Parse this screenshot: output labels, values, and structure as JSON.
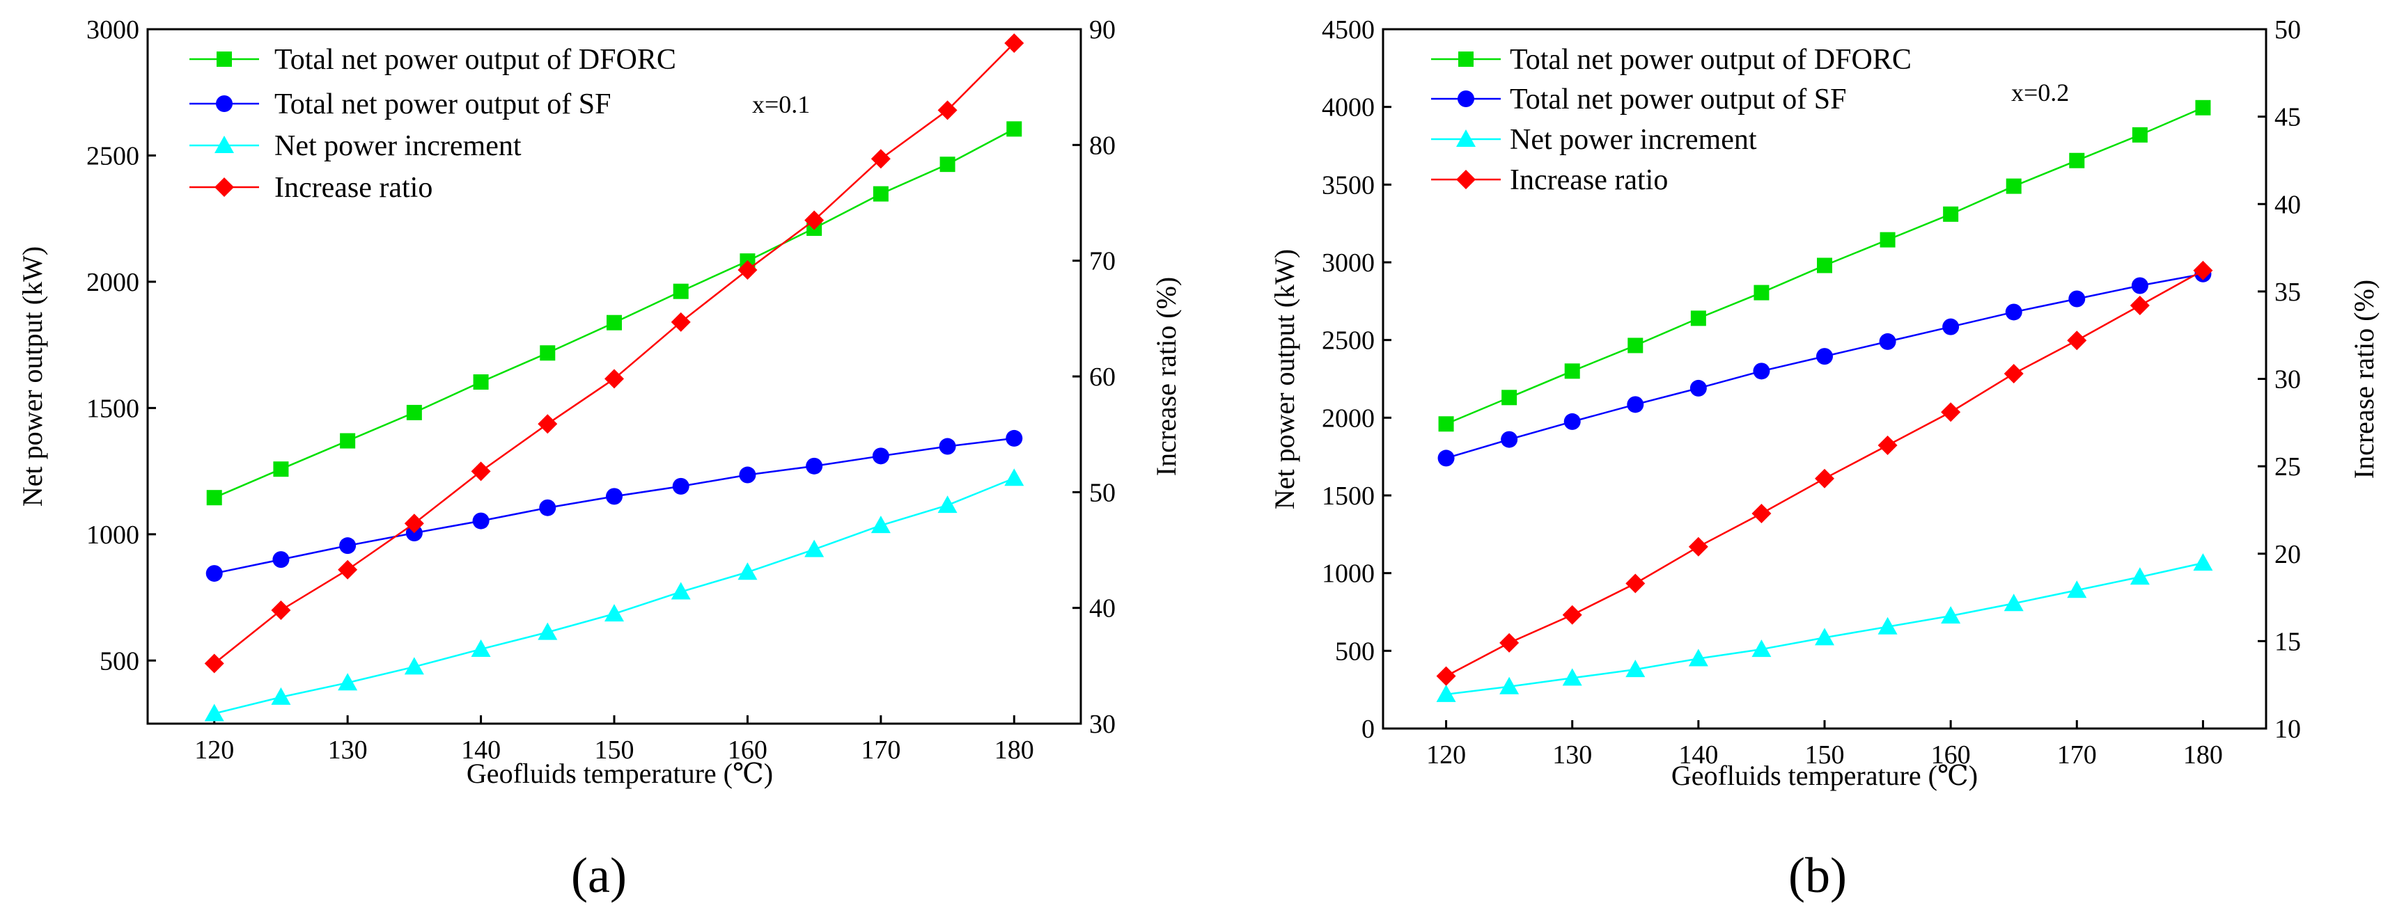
{
  "colors": {
    "dforc": "#00e000",
    "sf": "#0000ff",
    "increment": "#00ffff",
    "ratio": "#ff0000"
  },
  "chart_data": [
    {
      "type": "line",
      "panel_label": "(a)",
      "annotation": "x=0.1",
      "xlabel": "Geofluids temperature (℃)",
      "ylabel": "Net power output (kW)",
      "ylabel_right": "Increase ratio (%)",
      "x": [
        120,
        125,
        130,
        135,
        140,
        145,
        150,
        155,
        160,
        165,
        170,
        175,
        180
      ],
      "xlim": [
        115,
        185
      ],
      "xticks": [
        "120",
        "130",
        "140",
        "150",
        "160",
        "170",
        "180"
      ],
      "ylim": [
        250,
        3000
      ],
      "yticks": [
        "500",
        "1000",
        "1500",
        "2000",
        "2500",
        "3000"
      ],
      "ylim_right": [
        30,
        90
      ],
      "yticks_right": [
        "30",
        "40",
        "50",
        "60",
        "70",
        "80",
        "90"
      ],
      "legend": {
        "placement": "top-left"
      },
      "series": [
        {
          "name": "Total net power output of DFORC",
          "axis": "left",
          "marker": "square",
          "color_key": "dforc",
          "values": [
            1145,
            1258,
            1370,
            1482,
            1603,
            1718,
            1838,
            1962,
            2082,
            2212,
            2348,
            2465,
            2605
          ]
        },
        {
          "name": "Total net power output of SF",
          "axis": "left",
          "marker": "circle",
          "color_key": "sf",
          "values": [
            845,
            900,
            955,
            1005,
            1053,
            1105,
            1150,
            1190,
            1235,
            1270,
            1310,
            1348,
            1380
          ]
        },
        {
          "name": "Net power increment",
          "axis": "left",
          "marker": "triangle",
          "color_key": "increment",
          "values": [
            290,
            355,
            412,
            475,
            545,
            612,
            685,
            772,
            850,
            940,
            1035,
            1115,
            1222
          ]
        },
        {
          "name": "Increase ratio",
          "axis": "right",
          "marker": "diamond",
          "color_key": "ratio",
          "values": [
            35.2,
            39.8,
            43.3,
            47.3,
            51.8,
            55.9,
            59.8,
            64.7,
            69.2,
            73.5,
            78.8,
            83.0,
            88.8
          ]
        }
      ]
    },
    {
      "type": "line",
      "panel_label": "(b)",
      "annotation": "x=0.2",
      "xlabel": "Geofluids temperature (℃)",
      "ylabel": "Net power output (kW)",
      "ylabel_right": "Increase ratio (%)",
      "x": [
        120,
        125,
        130,
        135,
        140,
        145,
        150,
        155,
        160,
        165,
        170,
        175,
        180
      ],
      "xlim": [
        115,
        185
      ],
      "xticks": [
        "120",
        "130",
        "140",
        "150",
        "160",
        "170",
        "180"
      ],
      "ylim": [
        0,
        4500
      ],
      "yticks": [
        "0",
        "500",
        "1000",
        "1500",
        "2000",
        "2500",
        "3000",
        "3500",
        "4000",
        "4500"
      ],
      "ylim_right": [
        10,
        50
      ],
      "yticks_right": [
        "10",
        "15",
        "20",
        "25",
        "30",
        "35",
        "40",
        "45",
        "50"
      ],
      "legend": {
        "placement": "top-left"
      },
      "series": [
        {
          "name": "Total net power output of DFORC",
          "axis": "left",
          "marker": "square",
          "color_key": "dforc",
          "values": [
            1960,
            2130,
            2300,
            2465,
            2640,
            2805,
            2980,
            3145,
            3310,
            3490,
            3655,
            3820,
            3995
          ]
        },
        {
          "name": "Total net power output of SF",
          "axis": "left",
          "marker": "circle",
          "color_key": "sf",
          "values": [
            1740,
            1860,
            1975,
            2085,
            2190,
            2300,
            2395,
            2490,
            2585,
            2680,
            2765,
            2850,
            2925
          ]
        },
        {
          "name": "Net power increment",
          "axis": "left",
          "marker": "triangle",
          "color_key": "increment",
          "values": [
            220,
            270,
            325,
            380,
            450,
            510,
            585,
            655,
            725,
            805,
            890,
            975,
            1065
          ]
        },
        {
          "name": "Increase ratio",
          "axis": "right",
          "marker": "diamond",
          "color_key": "ratio",
          "values": [
            13.0,
            14.9,
            16.5,
            18.3,
            20.4,
            22.3,
            24.3,
            26.2,
            28.1,
            30.3,
            32.2,
            34.2,
            36.2
          ]
        }
      ]
    }
  ]
}
